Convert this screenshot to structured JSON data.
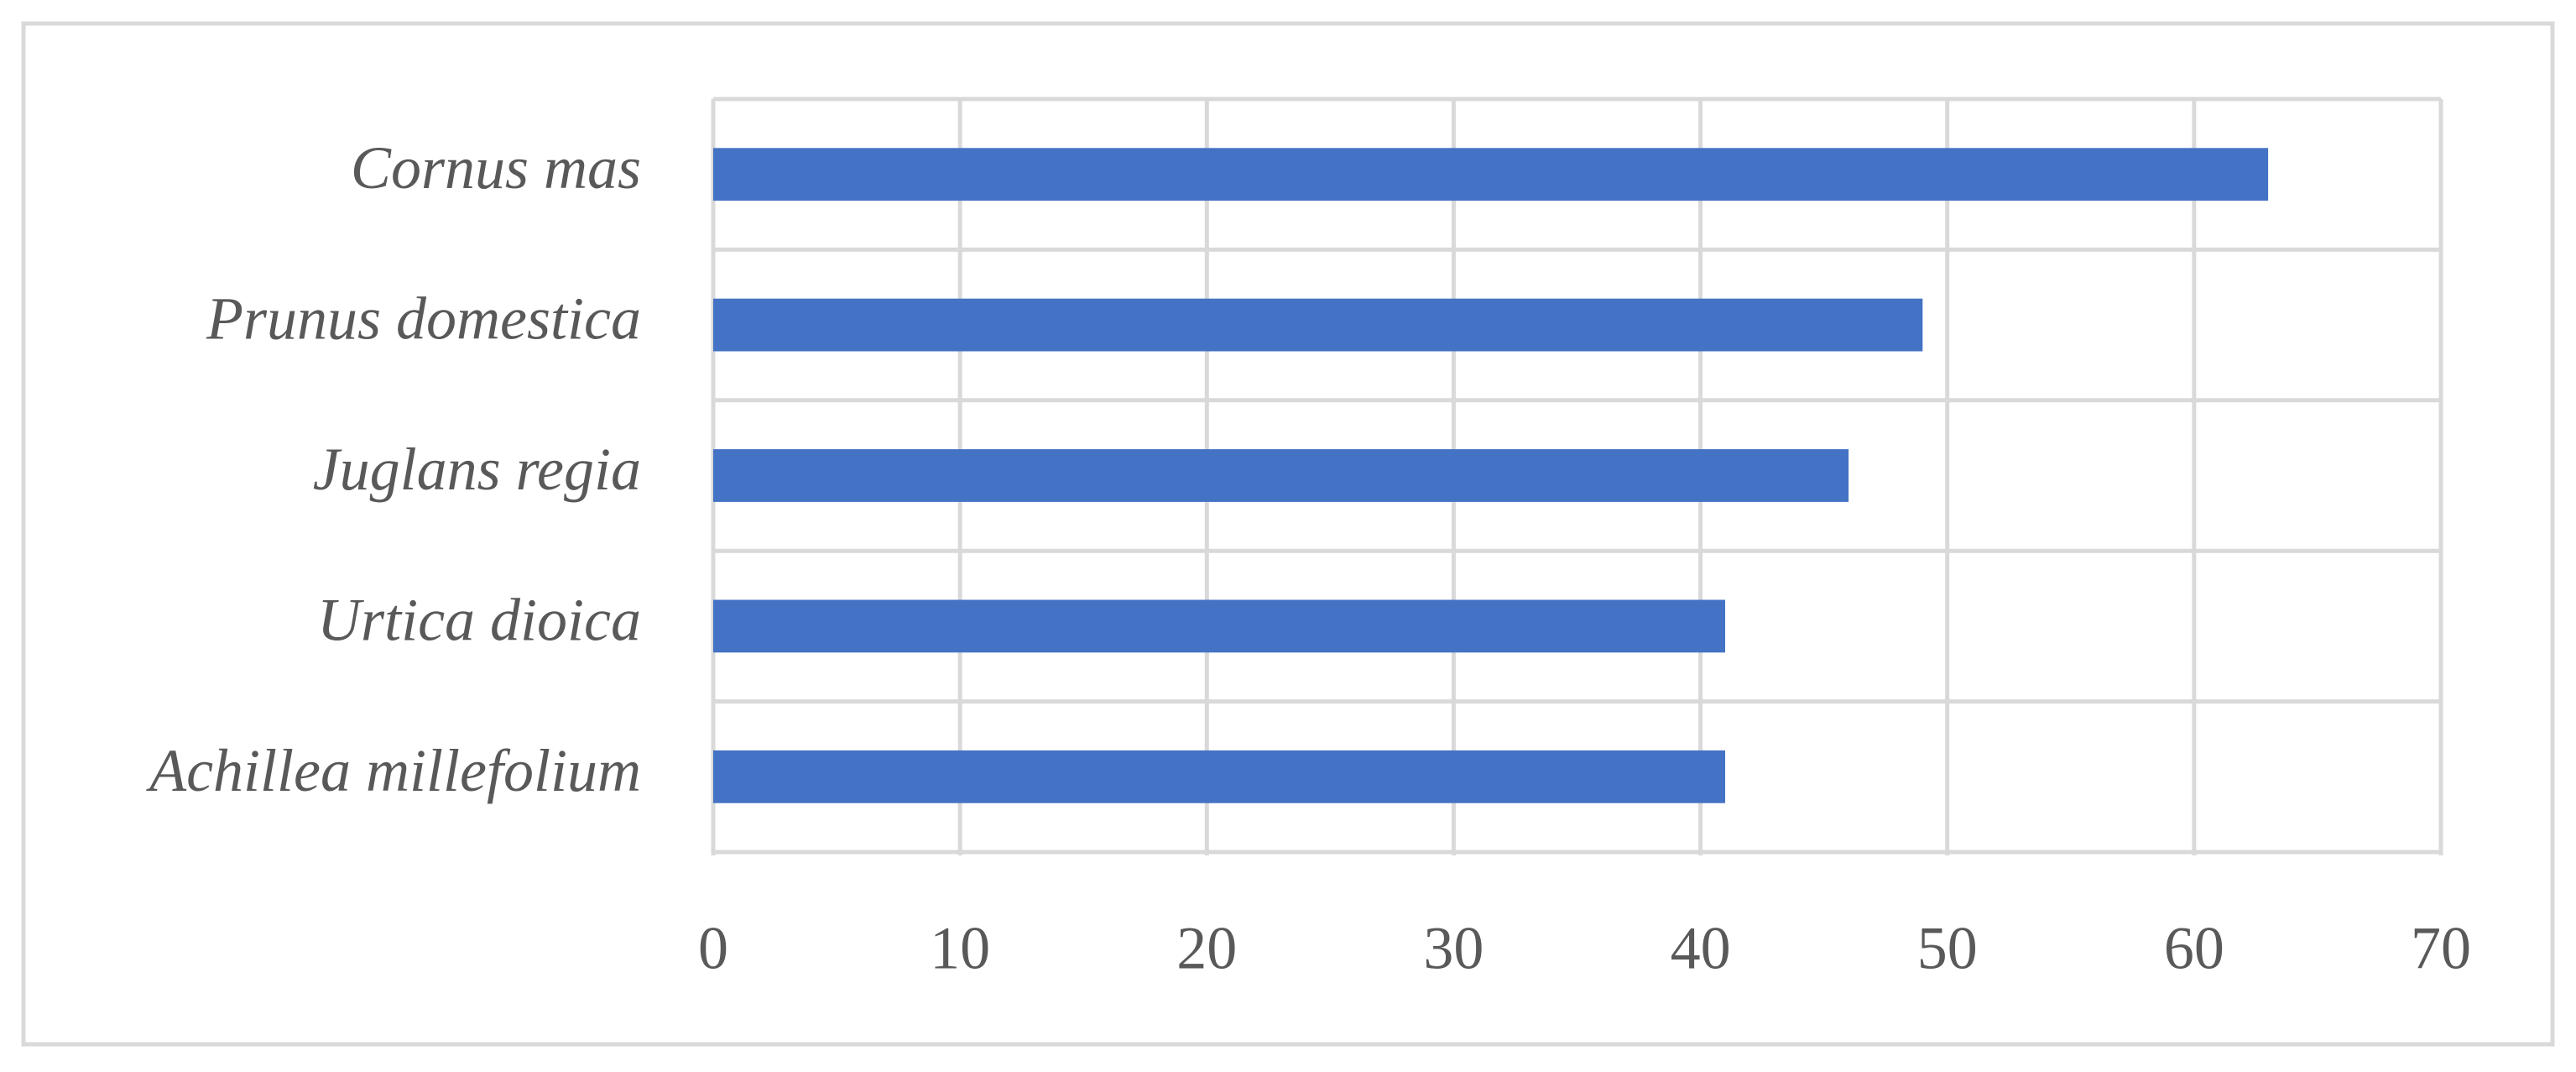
{
  "chart_data": {
    "type": "bar",
    "orientation": "horizontal",
    "categories": [
      "Cornus mas",
      "Prunus domestica",
      "Juglans regia",
      "Urtica dioica",
      "Achillea millefolium"
    ],
    "values": [
      63,
      49,
      46,
      41,
      41
    ],
    "color": "#4472c4",
    "xlim": [
      0,
      70
    ],
    "xticks": [
      0,
      10,
      20,
      30,
      40,
      50,
      60,
      70
    ],
    "grid": true
  }
}
